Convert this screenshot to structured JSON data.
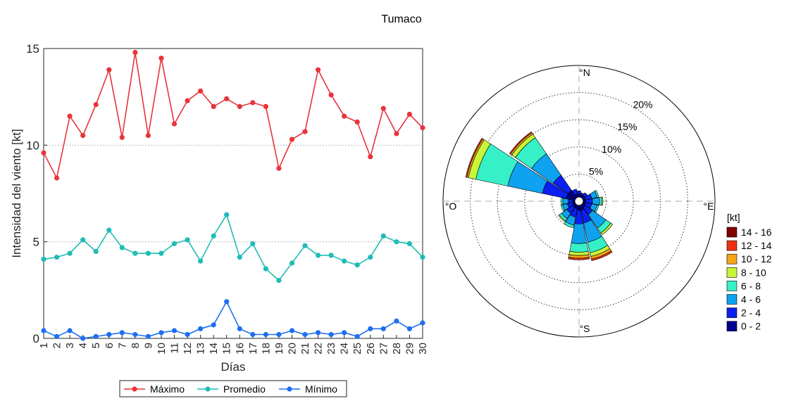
{
  "title": "Tumaco",
  "chart_data": [
    {
      "type": "line",
      "xlabel": "Días",
      "ylabel": "Intensidad del viento [kt]",
      "xlim": [
        1,
        30
      ],
      "ylim": [
        0,
        15
      ],
      "x_ticks": [
        "1",
        "2",
        "3",
        "4",
        "5",
        "6",
        "7",
        "8",
        "9",
        "10",
        "11",
        "12",
        "13",
        "14",
        "15",
        "16",
        "17",
        "18",
        "19",
        "20",
        "21",
        "22",
        "23",
        "24",
        "25",
        "26",
        "27",
        "28",
        "29",
        "30"
      ],
      "y_ticks": [
        "0",
        "5",
        "10",
        "15"
      ],
      "grid": "horizontal dotted",
      "legend_position": "bottom",
      "series": [
        {
          "name": "Máximo",
          "color": "#e8343a",
          "values": [
            9.6,
            8.3,
            11.5,
            10.5,
            12.1,
            13.9,
            10.4,
            14.8,
            10.5,
            14.5,
            11.1,
            12.3,
            12.8,
            12.0,
            12.4,
            12.0,
            12.2,
            12.0,
            8.8,
            10.3,
            10.7,
            13.9,
            12.6,
            11.5,
            11.2,
            9.4,
            11.9,
            10.6,
            11.6,
            10.9
          ]
        },
        {
          "name": "Promedio",
          "color": "#1fbcb6",
          "values": [
            4.1,
            4.2,
            4.4,
            5.1,
            4.5,
            5.6,
            4.7,
            4.4,
            4.4,
            4.4,
            4.9,
            5.1,
            4.0,
            5.3,
            6.4,
            4.2,
            4.9,
            3.6,
            3.0,
            3.9,
            4.8,
            4.3,
            4.3,
            4.0,
            3.8,
            4.2,
            5.3,
            5.0,
            4.9,
            4.2
          ]
        },
        {
          "name": "Mínimo",
          "color": "#1e6ef0",
          "values": [
            0.4,
            0.1,
            0.4,
            0.0,
            0.1,
            0.2,
            0.3,
            0.2,
            0.1,
            0.3,
            0.4,
            0.2,
            0.5,
            0.7,
            1.9,
            0.5,
            0.2,
            0.2,
            0.2,
            0.4,
            0.2,
            0.3,
            0.2,
            0.3,
            0.1,
            0.5,
            0.5,
            0.9,
            0.5,
            0.8
          ]
        }
      ]
    },
    {
      "type": "wind-rose",
      "direction_labels": {
        "north": "°N",
        "east": "°E",
        "south": "°S",
        "west": "°O"
      },
      "ring_labels": [
        "5%",
        "10%",
        "15%",
        "20%"
      ],
      "rings_percent": [
        5,
        10,
        15,
        20,
        25
      ],
      "legend_title": "[kt]",
      "bins": [
        {
          "label": "0 - 2",
          "color": "#00008f"
        },
        {
          "label": "2 - 4",
          "color": "#0a1ff0"
        },
        {
          "label": "4 - 6",
          "color": "#0ea2f0"
        },
        {
          "label": "6 - 8",
          "color": "#36f0c8"
        },
        {
          "label": "8 - 10",
          "color": "#c8f53a"
        },
        {
          "label": "10 - 12",
          "color": "#f5a51a"
        },
        {
          "label": "12 - 14",
          "color": "#f03010"
        },
        {
          "label": "14 - 16",
          "color": "#800000"
        }
      ],
      "sectors": [
        {
          "direction_deg": 0,
          "bins_percent": [
            1.0,
            0.5
          ]
        },
        {
          "direction_deg": 22.5,
          "bins_percent": [
            0.8,
            0.4
          ]
        },
        {
          "direction_deg": 45,
          "bins_percent": [
            0.9,
            0.6
          ]
        },
        {
          "direction_deg": 67.5,
          "bins_percent": [
            0.8,
            1.2,
            1.0,
            0.3
          ]
        },
        {
          "direction_deg": 90,
          "bins_percent": [
            0.8,
            1.3,
            1.3,
            0.4,
            0.2
          ]
        },
        {
          "direction_deg": 112.5,
          "bins_percent": [
            0.8,
            1.2,
            1.0,
            0.3
          ]
        },
        {
          "direction_deg": 135,
          "bins_percent": [
            1.0,
            1.6,
            3.0,
            1.1,
            0.4
          ]
        },
        {
          "direction_deg": 157.5,
          "bins_percent": [
            1.3,
            2.4,
            3.6,
            2.0,
            0.7,
            0.5,
            0.3
          ]
        },
        {
          "direction_deg": 180,
          "bins_percent": [
            1.3,
            2.5,
            3.6,
            1.6,
            0.6,
            0.5,
            0.3
          ]
        },
        {
          "direction_deg": 202.5,
          "bins_percent": [
            1.0,
            1.6,
            1.5,
            0.5
          ]
        },
        {
          "direction_deg": 225,
          "bins_percent": [
            1.0,
            1.3,
            1.2,
            0.5,
            0.2
          ]
        },
        {
          "direction_deg": 247.5,
          "bins_percent": [
            0.8,
            1.0,
            0.9,
            0.3
          ]
        },
        {
          "direction_deg": 270,
          "bins_percent": [
            0.8,
            0.8,
            1.0,
            0.3
          ]
        },
        {
          "direction_deg": 292.5,
          "bins_percent": [
            2.0,
            4.5,
            6.5,
            6.0,
            1.4,
            0.3,
            0.2
          ]
        },
        {
          "direction_deg": 315,
          "bins_percent": [
            2.0,
            3.4,
            4.8,
            3.6,
            0.8,
            0.3,
            0.2
          ]
        },
        {
          "direction_deg": 337.5,
          "bins_percent": [
            1.0,
            0.9
          ]
        }
      ]
    }
  ]
}
